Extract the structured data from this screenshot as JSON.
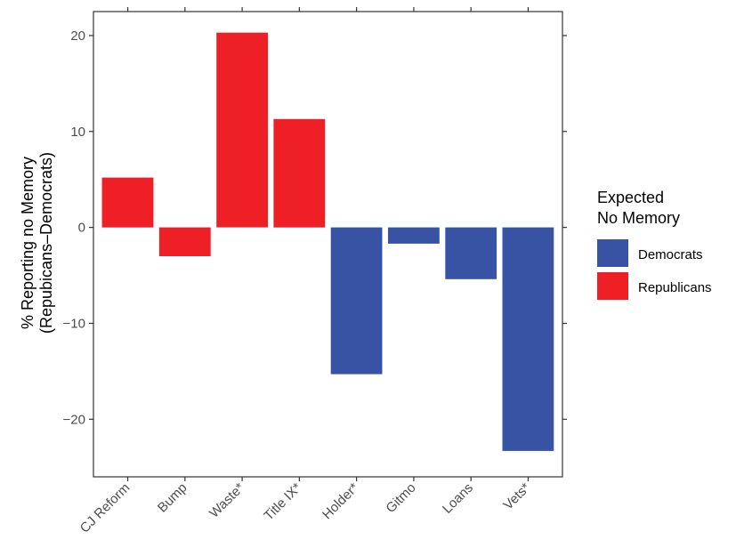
{
  "chart_data": {
    "type": "bar",
    "categories": [
      "CJ Reform",
      "Bump",
      "Waste*",
      "Title IX*",
      "Holder*",
      "Gitmo",
      "Loans",
      "Vets*"
    ],
    "values": [
      5.2,
      -3.0,
      20.3,
      11.3,
      -15.3,
      -1.7,
      -5.4,
      -23.3
    ],
    "groups": [
      "Republicans",
      "Republicans",
      "Republicans",
      "Republicans",
      "Democrats",
      "Democrats",
      "Democrats",
      "Democrats"
    ],
    "title": "",
    "xlabel": "",
    "ylabel": [
      "% Reporting no Memory",
      "(Repubicans–Democrats)"
    ],
    "ylim": [
      -26,
      22.5
    ],
    "yticks": [
      20,
      10,
      0,
      -10,
      -20
    ],
    "ytick_labels": [
      "20",
      "10",
      "0",
      "−10",
      "−20"
    ],
    "grid": false,
    "legend": {
      "title": [
        "Expected",
        "No Memory"
      ],
      "placement": "right",
      "entries": [
        {
          "label": "Democrats",
          "color": "#3953a4"
        },
        {
          "label": "Republicans",
          "color": "#ee1f25"
        }
      ]
    },
    "colors": {
      "Democrats": "#3953a4",
      "Republicans": "#ee1f25"
    }
  }
}
